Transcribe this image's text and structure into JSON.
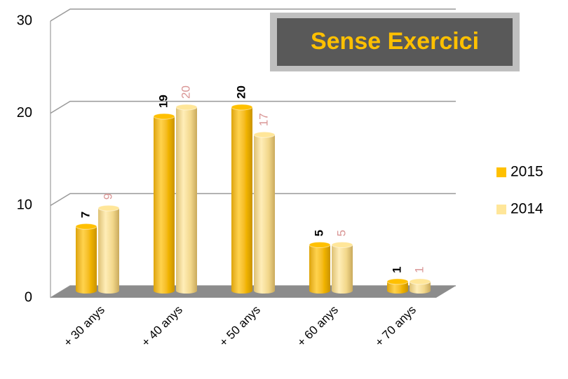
{
  "chart_data": {
    "type": "bar",
    "title": "Sense Exercici",
    "categories": [
      "+ 30 anys",
      "+ 40 anys",
      "+ 50 anys",
      "+ 60 anys",
      "+ 70 anys"
    ],
    "series": [
      {
        "name": "2015",
        "color": "#FFC000",
        "values": [
          7,
          19,
          20,
          5,
          1
        ]
      },
      {
        "name": "2014",
        "color": "#FFE699",
        "values": [
          9,
          20,
          17,
          5,
          1
        ]
      }
    ],
    "ylim": [
      0,
      30
    ],
    "yticks": [
      0,
      10,
      20,
      30
    ],
    "grid": true,
    "legend": "right"
  }
}
